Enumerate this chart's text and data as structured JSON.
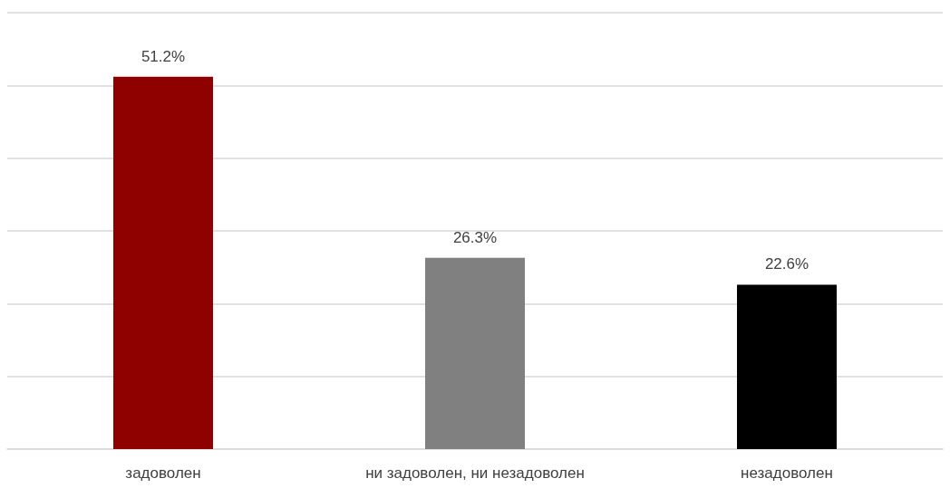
{
  "chart_data": {
    "type": "bar",
    "categories": [
      "задоволен",
      "ни задоволен, ни незадоволен",
      "незадоволен"
    ],
    "values": [
      51.2,
      26.3,
      22.6
    ],
    "colors": [
      "#8f0000",
      "#808080",
      "#000000"
    ],
    "value_labels": [
      "51.2%",
      "26.3%",
      "22.6%"
    ],
    "ylim": [
      0,
      60
    ],
    "yticks": [
      {
        "value": 0,
        "label": null
      },
      {
        "value": 10,
        "label": null
      },
      {
        "value": 20,
        "label": null
      },
      {
        "value": 30,
        "label": null
      },
      {
        "value": 40,
        "label": null
      },
      {
        "value": 50,
        "label": null
      },
      {
        "value": 60,
        "label": null
      }
    ],
    "grid": "y",
    "tick_labels": "x"
  }
}
